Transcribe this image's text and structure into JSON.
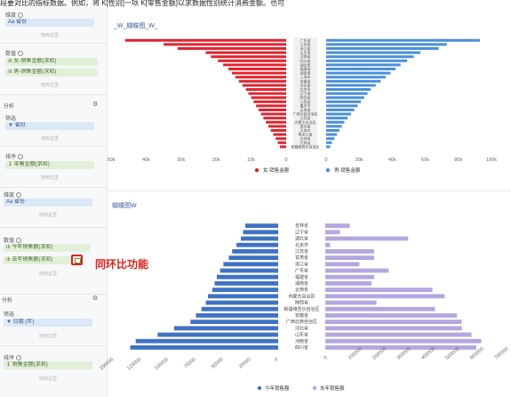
{
  "top_text": "段要对比的指标数据。例如，将 K[性别]一项 K[零售金额]以求数据性别统计消费金额。也可",
  "left_panel": {
    "s1_label": "维度",
    "s1_pill": "Aa 省份",
    "s1_drop": "拖到这里",
    "s2_label": "数值",
    "s2_pill1": "女-销售金额(求和)",
    "s2_pill2": "男-销售金额(求和)",
    "s2_drop": "拖到这里",
    "s3_label": "分析",
    "s3_filter": "筛选",
    "s3_pill": "省份",
    "s3_drop": "拖到这里",
    "s4_label": "排序",
    "s4_pill": "零售金额(求和)",
    "s4_drop": "拖到这里",
    "s5_label": "维度",
    "s5_pill": "Aa 省份",
    "s5_drop": "拖到这里",
    "s6_label": "数值",
    "s6_pill1": "今年销售额(求和)",
    "s6_pill2": "去年销售额(求和)",
    "s6_drop": "拖到这里",
    "s7_label": "分析",
    "s7_filter": "筛选",
    "s7_pill": "日期 (年)",
    "s7_drop": "拖到这里",
    "s8_label": "排序",
    "s8_pill": "销售金额(求和)",
    "s8_drop": "拖到这里"
  },
  "annotation": "同环比功能",
  "colors": {
    "red": "#e1252f",
    "blue": "#4a8fdc",
    "dark_blue": "#3f72c4",
    "purple": "#b4a6e0",
    "annotation": "#e0201b"
  },
  "chart_data": [
    {
      "type": "bar",
      "subtype": "butterfly",
      "title": "_W_蝴蝶图_W_",
      "x_ticks_left": [
        "50k",
        "40k",
        "30k",
        "20k",
        "10k",
        "0"
      ],
      "x_ticks_right": [
        "0",
        "20k",
        "40k",
        "60k",
        "80k",
        "100k"
      ],
      "left_max": 50000,
      "right_max": 100000,
      "legend": [
        "女-销售金额",
        "男-销售金额"
      ],
      "center_labels": [
        "广东省",
        "江苏省",
        "浙江省",
        "山东省",
        "河南省",
        "四川省",
        "湖北省",
        "福建省",
        "湖南省",
        "上海市",
        "安徽省",
        "河北省",
        "北京市",
        "辽宁省",
        "陕西省",
        "江西省",
        "重庆市",
        "云南省",
        "广西壮族自治区",
        "山西省",
        "内蒙古自治区",
        "贵州省",
        "天津市",
        "黑龙江省",
        "吉林省",
        "甘肃省",
        "新疆维吾尔自治区"
      ],
      "left_values": [
        46000,
        35000,
        31000,
        23000,
        21500,
        19500,
        18000,
        16500,
        15500,
        14500,
        13500,
        12500,
        11500,
        10800,
        10000,
        9300,
        8600,
        7900,
        7200,
        6500,
        5800,
        5100,
        4400,
        3700,
        3000,
        2400,
        1800
      ],
      "right_values": [
        93000,
        73000,
        68000,
        57000,
        53000,
        49000,
        45000,
        42000,
        39000,
        36000,
        33000,
        30000,
        27000,
        25000,
        23000,
        21000,
        19000,
        17000,
        15000,
        13000,
        11000,
        9500,
        8000,
        6500,
        5000,
        3500,
        2500
      ]
    },
    {
      "type": "bar",
      "subtype": "butterfly",
      "title": "蝴蝶图W",
      "x_ticks_left": [
        "150000",
        "125000",
        "100000",
        "75000",
        "50000",
        "25000",
        "0"
      ],
      "x_ticks_right": [
        "0",
        "100000",
        "200000",
        "300000",
        "400000",
        "500000",
        "600000",
        "700000"
      ],
      "left_max": 150000,
      "right_max": 700000,
      "legend": [
        "今年销售额",
        "去年销售额"
      ],
      "categories": [
        "吉林省",
        "辽宁省",
        "湖北省",
        "北京市",
        "江苏省",
        "甘肃省",
        "浙江省",
        "广东省",
        "福建省",
        "湖南省",
        "云南省",
        "内蒙古自治区",
        "陕西省",
        "新疆维吾尔自治区",
        "安徽省",
        "广西壮族自治区",
        "河北省",
        "山东省",
        "河南省",
        "四川省"
      ],
      "left_values": [
        30000,
        32000,
        34000,
        38000,
        42000,
        45000,
        50000,
        53000,
        56000,
        58000,
        60000,
        64000,
        66000,
        70000,
        75000,
        80000,
        95000,
        110000,
        130000,
        135000
      ],
      "right_values": [
        100000,
        60000,
        340000,
        20000,
        200000,
        200000,
        140000,
        260000,
        200000,
        190000,
        440000,
        490000,
        210000,
        450000,
        540000,
        560000,
        560000,
        600000,
        640000,
        620000
      ]
    }
  ]
}
